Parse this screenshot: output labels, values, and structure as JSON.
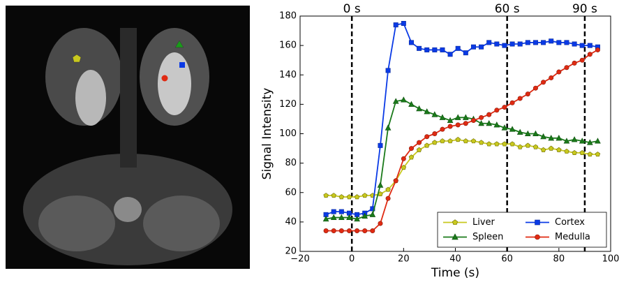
{
  "chart_data": {
    "type": "line",
    "x_label": "Time (s)",
    "y_label": "Signal Intensity",
    "x": [
      -10,
      -7,
      -4,
      -1,
      2,
      5,
      8,
      11,
      14,
      17,
      20,
      23,
      26,
      29,
      32,
      35,
      38,
      41,
      44,
      47,
      50,
      53,
      56,
      59,
      62,
      65,
      68,
      71,
      74,
      77,
      80,
      83,
      86,
      89,
      92,
      95
    ],
    "series": [
      {
        "name": "Liver",
        "color": "#c8c81e",
        "edge": "#6b6b00",
        "marker": "pentagon",
        "values": [
          58,
          58,
          57,
          57,
          57,
          58,
          58,
          59,
          62,
          68,
          77,
          84,
          89,
          92,
          94,
          95,
          95,
          96,
          95,
          95,
          94,
          93,
          93,
          93,
          93,
          91,
          92,
          91,
          89,
          90,
          89,
          88,
          87,
          87,
          86,
          86
        ]
      },
      {
        "name": "Cortex",
        "color": "#0a3ae6",
        "edge": "#0a2a9a",
        "marker": "square",
        "values": [
          45,
          47,
          47,
          46,
          45,
          46,
          49,
          92,
          143,
          174,
          175,
          162,
          158,
          157,
          157,
          157,
          154,
          158,
          155,
          159,
          159,
          162,
          161,
          160,
          161,
          161,
          162,
          162,
          162,
          163,
          162,
          162,
          161,
          160,
          160,
          159
        ]
      },
      {
        "name": "Spleen",
        "color": "#1a7a1a",
        "edge": "#0d4d0d",
        "marker": "triangle",
        "values": [
          42,
          43,
          43,
          43,
          42,
          44,
          45,
          65,
          104,
          122,
          123,
          120,
          117,
          115,
          113,
          111,
          109,
          111,
          111,
          110,
          107,
          107,
          106,
          104,
          103,
          101,
          100,
          100,
          98,
          97,
          97,
          95,
          96,
          95,
          94,
          95
        ]
      },
      {
        "name": "Medulla",
        "color": "#e02a12",
        "edge": "#8a1a0a",
        "marker": "circle",
        "values": [
          34,
          34,
          34,
          34,
          34,
          34,
          34,
          39,
          56,
          68,
          83,
          90,
          94,
          98,
          100,
          103,
          105,
          106,
          107,
          109,
          111,
          113,
          116,
          118,
          121,
          124,
          127,
          131,
          135,
          138,
          142,
          145,
          148,
          150,
          154,
          157
        ]
      }
    ],
    "vlines": [
      {
        "x": 0,
        "label": "0 s"
      },
      {
        "x": 60,
        "label": "60 s"
      },
      {
        "x": 90,
        "label": "90 s"
      }
    ],
    "xlim": [
      -20,
      100
    ],
    "xticks": [
      {
        "value": -20,
        "label": "−20"
      },
      0,
      20,
      40,
      60,
      80,
      100
    ],
    "ylim": [
      20,
      180
    ],
    "yticks": [
      20,
      40,
      60,
      80,
      100,
      120,
      140,
      160,
      180
    ],
    "legend": "lower right",
    "legend_columns": 2
  }
}
